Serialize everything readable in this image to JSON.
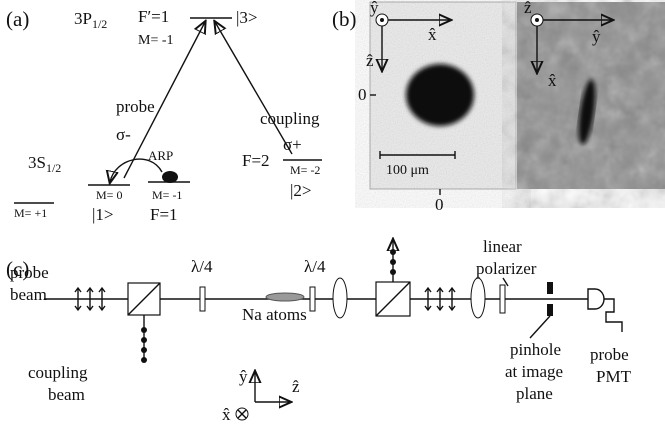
{
  "panel_a": {
    "label": "(a)",
    "upper_level": {
      "main": "3P",
      "sub": "1/2"
    },
    "upper_f": "F′=1",
    "upper_m": "M= -1",
    "state3": "|3>",
    "probe": "probe",
    "probe_pol": "σ-",
    "coupling": "coupling",
    "coupling_pol": "σ+",
    "lower_level": {
      "main": "3S",
      "sub": "1/2"
    },
    "arp": "ARP",
    "m0": "M= 0",
    "mp1": "M= +1",
    "mm1": "M= -1",
    "state1": "|1>",
    "f1": "F=1",
    "f2": "F=2",
    "mm2": "M= -2",
    "state2": "|2>"
  },
  "panel_b": {
    "label": "(b)",
    "left_axes": {
      "out": "ŷ",
      "right": "x̂",
      "down": "ẑ"
    },
    "vertical_zero": "0",
    "scale_bar": "100 μm",
    "horizontal_zero": "0",
    "right_axes": {
      "out": "ẑ",
      "right": "ŷ",
      "down": "x̂"
    }
  },
  "panel_c": {
    "label": "(c)",
    "probe_beam": [
      "probe",
      "beam"
    ],
    "coupling_beam": [
      "coupling",
      "beam"
    ],
    "waveplate1": "λ/4",
    "waveplate2": "λ/4",
    "atoms": "Na atoms",
    "polarizer": [
      "linear",
      "polarizer"
    ],
    "pinhole": [
      "pinhole",
      "at image",
      "plane"
    ],
    "detector": [
      "probe",
      "PMT"
    ],
    "axes": {
      "up": "ŷ",
      "in": "x̂",
      "right": "ẑ"
    }
  }
}
